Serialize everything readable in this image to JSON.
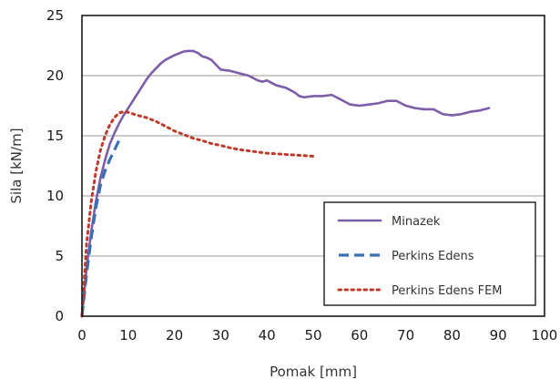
{
  "chart_data": {
    "type": "line",
    "title": "",
    "xlabel": "Pomak [mm]",
    "ylabel": "Sila [kN/m]",
    "xlim": [
      0,
      100
    ],
    "ylim": [
      0,
      25
    ],
    "xticks": [
      0,
      10,
      20,
      30,
      40,
      50,
      60,
      70,
      80,
      90,
      100
    ],
    "yticks": [
      0,
      5,
      10,
      15,
      20,
      25
    ],
    "grid": "horizontal",
    "legend_position": "bottom-right",
    "series": [
      {
        "name": "Minazek",
        "color": "#7b5ea7",
        "style": "solid",
        "x": [
          0,
          1,
          2,
          3,
          4,
          5,
          6,
          7,
          8,
          9,
          10,
          11,
          12,
          13,
          14,
          15,
          16,
          17,
          18,
          19,
          20,
          21,
          22,
          23,
          24,
          25,
          26,
          27,
          28,
          29,
          30,
          32,
          34,
          36,
          37,
          38,
          39,
          40,
          42,
          44,
          45,
          46,
          47,
          48,
          50,
          52,
          54,
          56,
          58,
          60,
          62,
          64,
          66,
          68,
          70,
          72,
          74,
          76,
          78,
          80,
          82,
          84,
          86,
          88
        ],
        "y": [
          0,
          4,
          7,
          9.5,
          11.5,
          13,
          14.3,
          15.2,
          16,
          16.7,
          17.3,
          17.9,
          18.5,
          19.1,
          19.7,
          20.2,
          20.6,
          21,
          21.3,
          21.5,
          21.7,
          21.85,
          22,
          22.05,
          22.05,
          21.9,
          21.6,
          21.5,
          21.3,
          20.9,
          20.5,
          20.4,
          20.2,
          20,
          19.8,
          19.6,
          19.5,
          19.6,
          19.2,
          19,
          18.8,
          18.6,
          18.3,
          18.2,
          18.3,
          18.3,
          18.4,
          18,
          17.6,
          17.5,
          17.6,
          17.7,
          17.9,
          17.9,
          17.5,
          17.3,
          17.2,
          17.2,
          16.8,
          16.7,
          16.8,
          17,
          17.1,
          17.3
        ]
      },
      {
        "name": "Perkins Edens",
        "color": "#3a6fb5",
        "style": "dashed",
        "x": [
          0,
          1,
          2,
          3,
          4,
          5,
          6,
          7,
          8
        ],
        "y": [
          0,
          3.5,
          6.5,
          9,
          10.9,
          12.1,
          13,
          13.8,
          14.6
        ]
      },
      {
        "name": "Perkins Edens FEM",
        "color": "#c0392b",
        "style": "dotted",
        "x": [
          0,
          1,
          2,
          3,
          4,
          5,
          6,
          7,
          8,
          9,
          10,
          12,
          14,
          16,
          18,
          20,
          22,
          24,
          26,
          28,
          30,
          32,
          34,
          36,
          38,
          40,
          42,
          44,
          46,
          48,
          50
        ],
        "y": [
          0,
          6,
          9.5,
          12,
          13.8,
          15,
          15.9,
          16.5,
          16.9,
          17,
          16.95,
          16.7,
          16.5,
          16.2,
          15.8,
          15.4,
          15.1,
          14.8,
          14.6,
          14.35,
          14.2,
          14.0,
          13.85,
          13.75,
          13.65,
          13.55,
          13.5,
          13.45,
          13.4,
          13.35,
          13.3
        ]
      }
    ]
  }
}
